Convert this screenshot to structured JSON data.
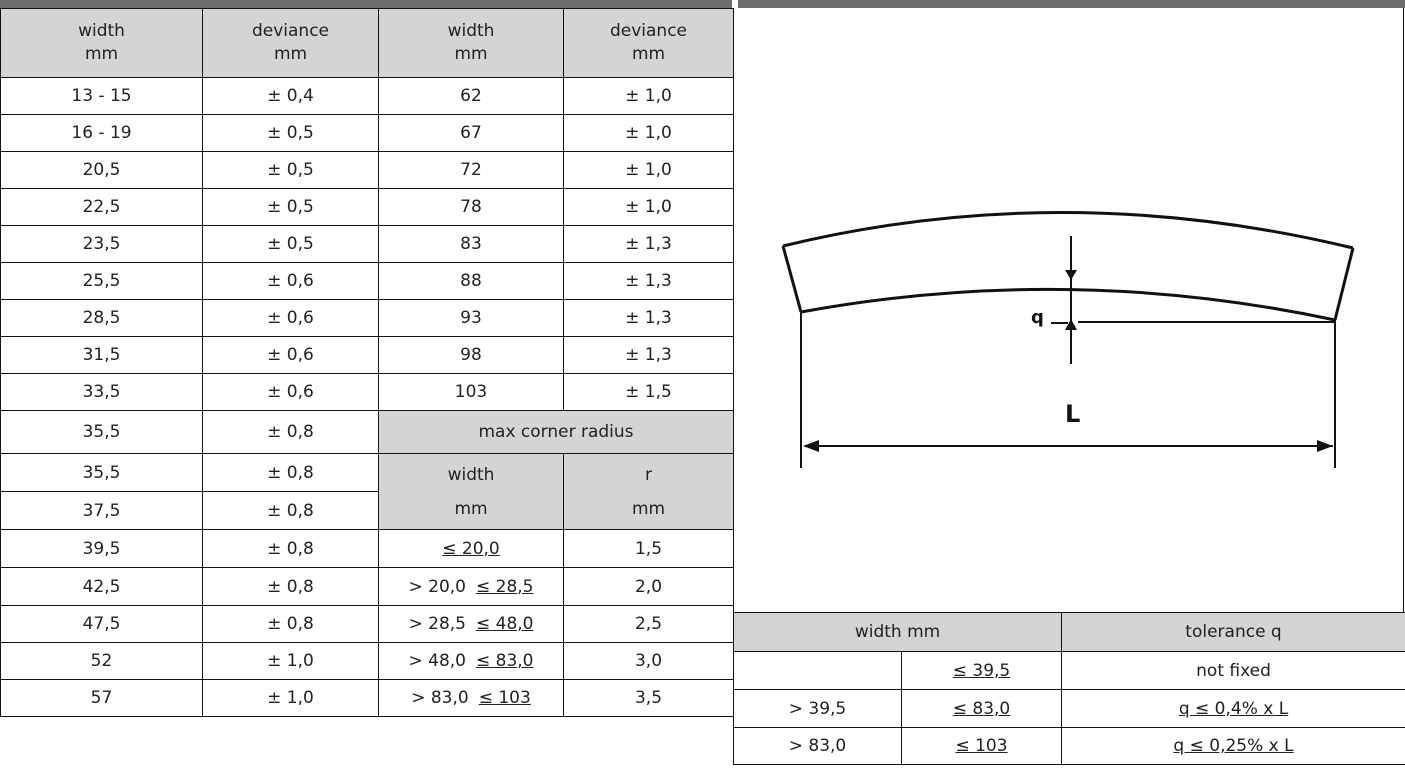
{
  "left_table": {
    "headers": [
      {
        "line1": "width",
        "line2": "mm"
      },
      {
        "line1": "deviance",
        "line2": "mm"
      },
      {
        "line1": "width",
        "line2": "mm"
      },
      {
        "line1": "deviance",
        "line2": "mm"
      }
    ],
    "rows": [
      [
        "13 - 15",
        "± 0,4",
        "62",
        "± 1,0"
      ],
      [
        "16 - 19",
        "± 0,5",
        "67",
        "± 1,0"
      ],
      [
        "20,5",
        "± 0,5",
        "72",
        "± 1,0"
      ],
      [
        "22,5",
        "± 0,5",
        "78",
        "± 1,0"
      ],
      [
        "23,5",
        "± 0,5",
        "83",
        "± 1,3"
      ],
      [
        "25,5",
        "± 0,6",
        "88",
        "± 1,3"
      ],
      [
        "28,5",
        "± 0,6",
        "93",
        "± 1,3"
      ],
      [
        "31,5",
        "± 0,6",
        "98",
        "± 1,3"
      ],
      [
        "33,5",
        "± 0,6",
        "103",
        "± 1,5"
      ]
    ],
    "extra_rows": [
      [
        "35,5",
        "± 0,8"
      ],
      [
        "35,5",
        "± 0,8"
      ],
      [
        "37,5",
        "± 0,8"
      ],
      [
        "39,5",
        "± 0,8"
      ],
      [
        "42,5",
        "± 0,8"
      ],
      [
        "47,5",
        "± 0,8"
      ],
      [
        "52",
        "± 1,0"
      ],
      [
        "57",
        "± 1,0"
      ]
    ]
  },
  "corner_radius": {
    "title": "max corner radius",
    "col1_line1": "width",
    "col1_line2": "mm",
    "col2_line1": "r",
    "col2_line2": "mm",
    "rows": [
      {
        "width_a": "≤ 20,0",
        "width_b": "",
        "r": "1,5"
      },
      {
        "width_a": "> 20,0",
        "width_b": "≤ 28,5",
        "r": "2,0"
      },
      {
        "width_a": "> 28,5",
        "width_b": "≤ 48,0",
        "r": "2,5"
      },
      {
        "width_a": "> 48,0",
        "width_b": "≤ 83,0",
        "r": "3,0"
      },
      {
        "width_a": "> 83,0",
        "width_b": "≤ 103",
        "r": "3,5"
      }
    ]
  },
  "tolerance_table": {
    "header_width": "width mm",
    "header_tol": "tolerance q",
    "rows": [
      {
        "a": "",
        "b": "≤ 39,5",
        "tol": "not fixed"
      },
      {
        "a": "> 39,5",
        "b": "≤ 83,0",
        "tol": "q ≤ 0,4% x L"
      },
      {
        "a": "> 83,0",
        "b": "≤ 103",
        "tol": "q ≤ 0,25% x L"
      }
    ]
  },
  "diagram": {
    "label_q": "q",
    "label_L": "L"
  }
}
